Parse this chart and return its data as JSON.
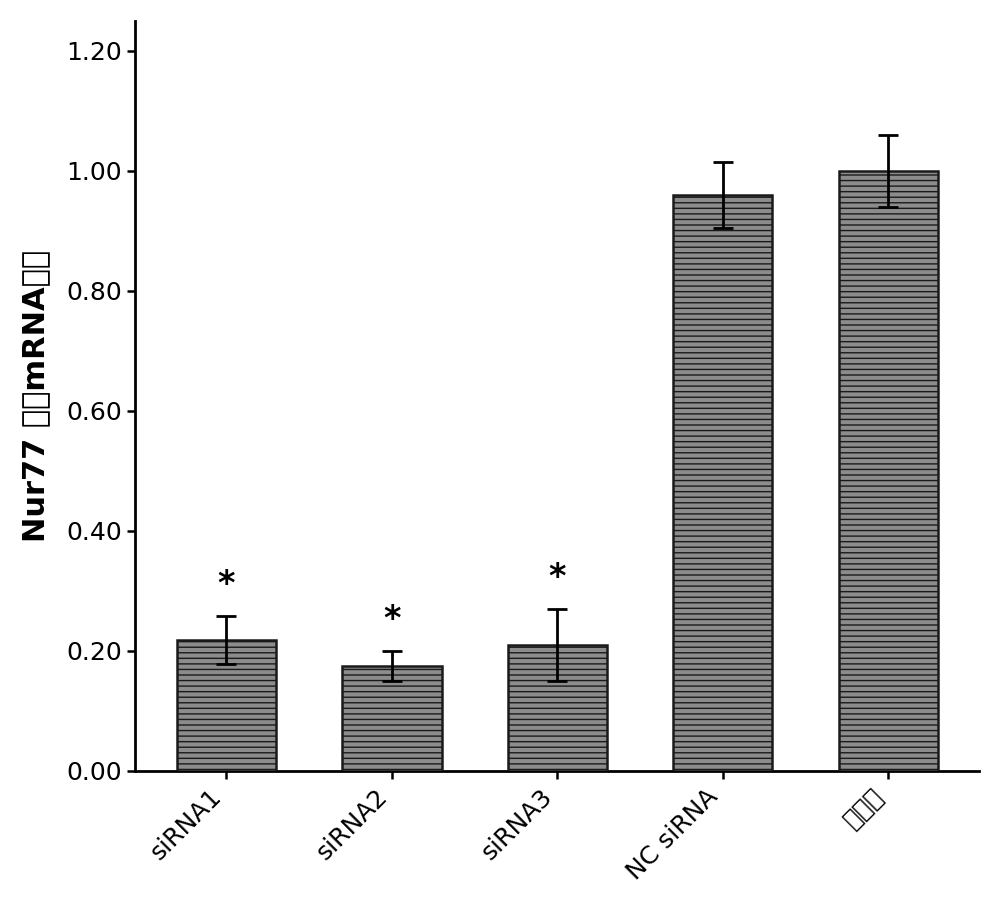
{
  "categories": [
    "siRNA1",
    "siRNA2",
    "siRNA3",
    "NC siRNA",
    "正常组"
  ],
  "values": [
    0.218,
    0.175,
    0.21,
    0.96,
    1.0
  ],
  "errors": [
    0.04,
    0.025,
    0.06,
    0.055,
    0.06
  ],
  "bar_color": "#8c8c8c",
  "bar_hatch": "---",
  "ylabel": "Nur77 相对mRNA水平",
  "ylim": [
    0.0,
    1.25
  ],
  "yticks": [
    0.0,
    0.2,
    0.4,
    0.6,
    0.8,
    1.0,
    1.2
  ],
  "significance": [
    true,
    true,
    true,
    false,
    false
  ],
  "bg_color": "#ffffff",
  "text_color": "#000000",
  "axis_linewidth": 2.0,
  "bar_edgecolor": "#1a1a1a",
  "ylabel_fontsize": 22,
  "tick_fontsize": 18,
  "star_fontsize": 24,
  "bar_width": 0.6
}
